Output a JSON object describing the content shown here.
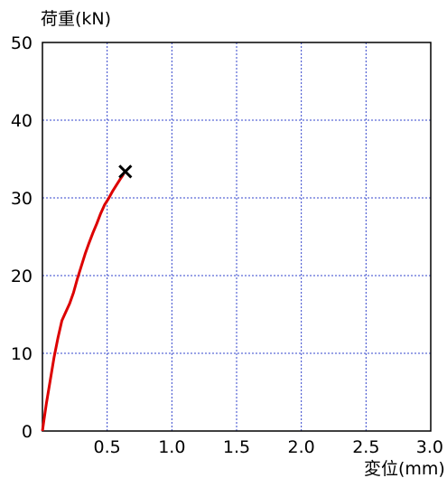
{
  "chart_data": {
    "type": "line",
    "ylabel": "荷重(kN)",
    "xlabel": "変位(mm)",
    "xlim": [
      0,
      3.0
    ],
    "ylim": [
      0,
      50
    ],
    "x_ticks": [
      0.5,
      1.0,
      1.5,
      2.0,
      2.5,
      3.0
    ],
    "x_tick_labels": [
      "0.5",
      "1.0",
      "1.5",
      "2.0",
      "2.5",
      "3.0"
    ],
    "y_ticks": [
      0,
      10,
      20,
      30,
      40,
      50
    ],
    "y_tick_labels": [
      "0",
      "10",
      "20",
      "30",
      "40",
      "50"
    ],
    "grid": true,
    "series": [
      {
        "color": "#dd0000",
        "x": [
          0.0,
          0.01,
          0.03,
          0.06,
          0.09,
          0.12,
          0.15,
          0.18,
          0.21,
          0.24,
          0.27,
          0.3,
          0.33,
          0.36,
          0.39,
          0.42,
          0.45,
          0.48,
          0.51,
          0.54,
          0.57,
          0.6,
          0.62,
          0.63
        ],
        "y": [
          0.0,
          1.2,
          3.5,
          6.5,
          9.5,
          12.0,
          14.2,
          15.3,
          16.4,
          17.8,
          19.6,
          21.2,
          22.8,
          24.2,
          25.5,
          26.7,
          28.0,
          29.1,
          29.9,
          30.8,
          31.6,
          32.4,
          32.9,
          33.2
        ]
      }
    ],
    "marker": {
      "symbol": "×",
      "x": 0.64,
      "y": 33.5,
      "color": "#000000"
    }
  }
}
